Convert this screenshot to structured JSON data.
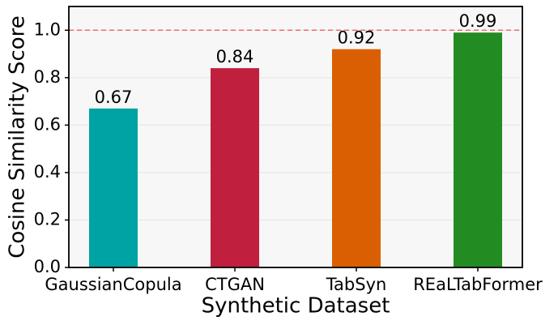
{
  "chart_data": {
    "type": "bar",
    "xlabel": "Synthetic Dataset",
    "ylabel": "Cosine Similarity Score",
    "categories": [
      "GaussianCopula",
      "CTGAN",
      "TabSyn",
      "REaLTabFormer"
    ],
    "values": [
      0.67,
      0.84,
      0.92,
      0.99
    ],
    "colors": [
      "#00a3a3",
      "#c01f3e",
      "#d95f02",
      "#228b22"
    ],
    "ylim": [
      0,
      1.1
    ],
    "yticks": [
      {
        "value": 0,
        "label": "0.0"
      },
      0.2,
      0.4,
      0.6,
      0.8,
      {
        "value": 1.0,
        "label": "1.0"
      }
    ],
    "reference_line": 1.0,
    "reference_color": "#ee5555",
    "grid": true
  }
}
